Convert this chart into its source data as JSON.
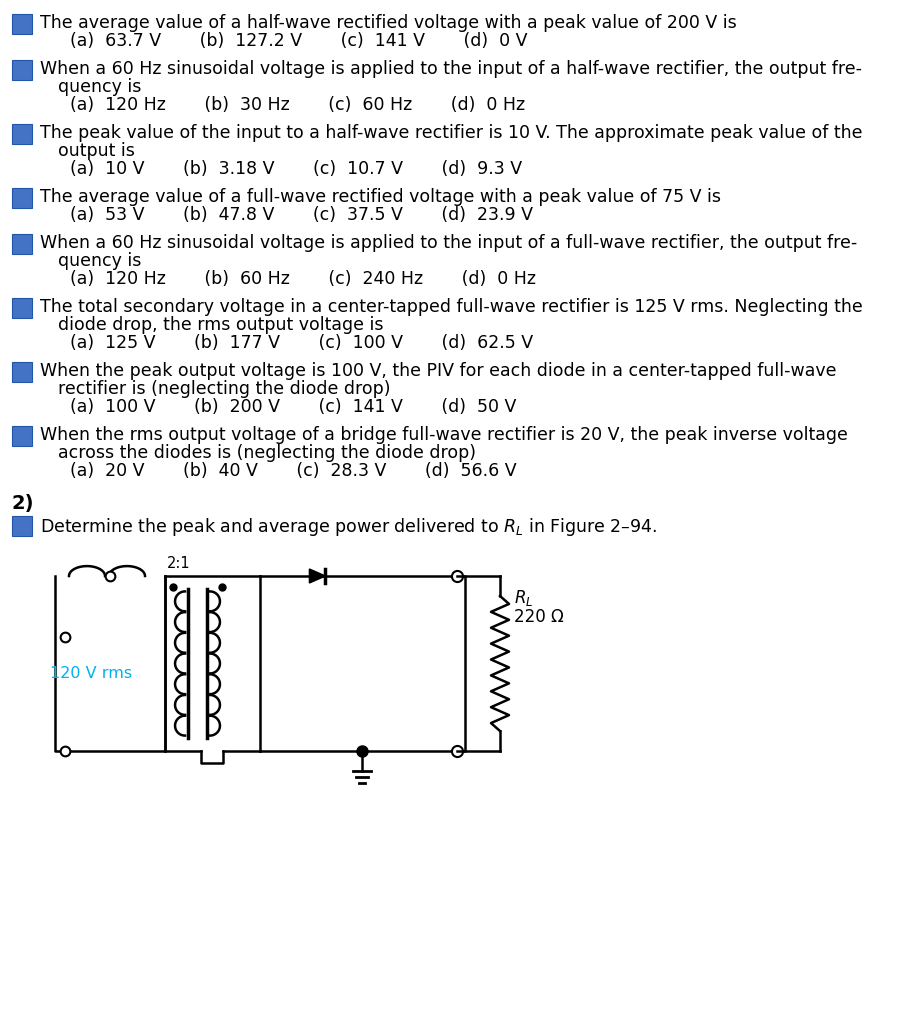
{
  "bg_color": "#ffffff",
  "text_color": "#000000",
  "blue_color": "#4472c4",
  "cyan_color": "#00b0f0",
  "questions": [
    {
      "question_line1": "The average value of a half-wave rectified voltage with a peak value of 200 V is",
      "question_line2": "",
      "answers": "(a)  63.7 V       (b)  127.2 V       (c)  141 V       (d)  0 V"
    },
    {
      "question_line1": "When a 60 Hz sinusoidal voltage is applied to the input of a half-wave rectifier, the output fre-",
      "question_line2": "quency is",
      "answers": "(a)  120 Hz       (b)  30 Hz       (c)  60 Hz       (d)  0 Hz"
    },
    {
      "question_line1": "The peak value of the input to a half-wave rectifier is 10 V. The approximate peak value of the",
      "question_line2": "output is",
      "answers": "(a)  10 V       (b)  3.18 V       (c)  10.7 V       (d)  9.3 V"
    },
    {
      "question_line1": "The average value of a full-wave rectified voltage with a peak value of 75 V is",
      "question_line2": "",
      "answers": "(a)  53 V       (b)  47.8 V       (c)  37.5 V       (d)  23.9 V"
    },
    {
      "question_line1": "When a 60 Hz sinusoidal voltage is applied to the input of a full-wave rectifier, the output fre-",
      "question_line2": "quency is",
      "answers": "(a)  120 Hz       (b)  60 Hz       (c)  240 Hz       (d)  0 Hz"
    },
    {
      "question_line1": "The total secondary voltage in a center-tapped full-wave rectifier is 125 V rms. Neglecting the",
      "question_line2": "diode drop, the rms output voltage is",
      "answers": "(a)  125 V       (b)  177 V       (c)  100 V       (d)  62.5 V"
    },
    {
      "question_line1": "When the peak output voltage is 100 V, the PIV for each diode in a center-tapped full-wave",
      "question_line2": "rectifier is (neglecting the diode drop)",
      "answers": "(a)  100 V       (b)  200 V       (c)  141 V       (d)  50 V"
    },
    {
      "question_line1": "When the rms output voltage of a bridge full-wave rectifier is 20 V, the peak inverse voltage",
      "question_line2": "across the diodes is (neglecting the diode drop)",
      "answers": "(a)  20 V       (b)  40 V       (c)  28.3 V       (d)  56.6 V"
    }
  ],
  "section2_label": "2)",
  "problem_line": "Determine the peak and average power delivered to $R_L$ in Figure 2–94.",
  "circuit_label": "120 V rms",
  "transformer_ratio": "2:1"
}
